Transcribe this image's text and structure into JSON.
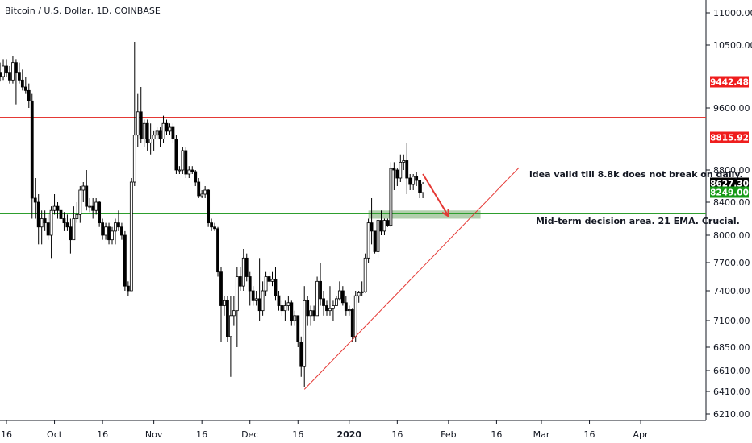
{
  "header": {
    "title": "Bitcoin / U.S. Dollar, 1D, COINBASE"
  },
  "colors": {
    "candle_up": "#ffffff",
    "candle_down": "#000000",
    "candle_outline": "#000000",
    "resistance": "#e53935",
    "support": "#2e9e2e",
    "zone": "#a5c79f",
    "trendline": "#e53935",
    "arrow": "#e53935",
    "tag_red": "#ef1d1d",
    "tag_black": "#000000",
    "tag_green": "#179a17"
  },
  "annotations": {
    "idea": "idea valid till 8.8k does not break on daily.",
    "decision": "Mid-term decision area. 21 EMA. Crucial."
  },
  "chart_data": {
    "type": "candlestick",
    "title": "Bitcoin / U.S. Dollar, 1D, COINBASE",
    "ylim": [
      6100,
      11300
    ],
    "y_ticks": [
      "11000.00",
      "10500.00",
      "9600.00",
      "8800.00",
      "8400.00",
      "8000.00",
      "7700.00",
      "7400.00",
      "7100.00",
      "6850.00",
      "6610.00",
      "6410.00",
      "6210.00"
    ],
    "x_ticks": [
      "16",
      "Oct",
      "16",
      "Nov",
      "16",
      "Dec",
      "16",
      "2020",
      "16",
      "Feb",
      "16",
      "Mar",
      "16",
      "Apr"
    ],
    "price_tags": [
      {
        "label": "9442.48",
        "style": "red"
      },
      {
        "label": "8815.92",
        "style": "red"
      },
      {
        "label": "8627.30",
        "style": "black"
      },
      {
        "label": "8249.00",
        "style": "green"
      }
    ],
    "horizontal_lines": [
      {
        "value": 9490,
        "kind": "resistance"
      },
      {
        "value": 8830,
        "kind": "resistance"
      },
      {
        "value": 8260,
        "kind": "support"
      }
    ],
    "zone": {
      "from_date": "2020-01-07",
      "to_date": "2020-02-11",
      "low": 8200,
      "high": 8300
    },
    "trendline": {
      "from": {
        "date": "2019-12-18",
        "value": 6430
      },
      "to": {
        "date": "2020-02-23",
        "value": 8830
      }
    },
    "arrow": {
      "from": {
        "date": "2020-01-24",
        "value": 8750
      },
      "to": {
        "date": "2020-02-01",
        "value": 8230
      }
    },
    "series": [
      {
        "date": "2019-09-10",
        "o": 10100,
        "h": 10400,
        "l": 10000,
        "c": 10150
      },
      {
        "date": "2019-09-11",
        "o": 10150,
        "h": 10250,
        "l": 9950,
        "c": 10050
      },
      {
        "date": "2019-09-12",
        "o": 10050,
        "h": 10300,
        "l": 9950,
        "c": 10200
      },
      {
        "date": "2019-09-13",
        "o": 10200,
        "h": 10350,
        "l": 10000,
        "c": 10100
      },
      {
        "date": "2019-09-14",
        "o": 10100,
        "h": 10250,
        "l": 9980,
        "c": 10050
      },
      {
        "date": "2019-09-15",
        "o": 10050,
        "h": 10300,
        "l": 10000,
        "c": 10200
      },
      {
        "date": "2019-09-16",
        "o": 10200,
        "h": 10300,
        "l": 10050,
        "c": 10100
      },
      {
        "date": "2019-09-17",
        "o": 10100,
        "h": 10200,
        "l": 9950,
        "c": 10000
      },
      {
        "date": "2019-09-18",
        "o": 10000,
        "h": 10350,
        "l": 9950,
        "c": 10250
      },
      {
        "date": "2019-09-19",
        "o": 10250,
        "h": 10300,
        "l": 9650,
        "c": 10100
      },
      {
        "date": "2019-09-20",
        "o": 10100,
        "h": 10250,
        "l": 9950,
        "c": 10000
      },
      {
        "date": "2019-09-21",
        "o": 10000,
        "h": 10150,
        "l": 9850,
        "c": 9900
      },
      {
        "date": "2019-09-22",
        "o": 9900,
        "h": 10050,
        "l": 9800,
        "c": 9850
      },
      {
        "date": "2019-09-23",
        "o": 9850,
        "h": 9950,
        "l": 9600,
        "c": 9700
      },
      {
        "date": "2019-09-24",
        "o": 9700,
        "h": 9800,
        "l": 8200,
        "c": 8450
      },
      {
        "date": "2019-09-25",
        "o": 8450,
        "h": 8700,
        "l": 8200,
        "c": 8400
      },
      {
        "date": "2019-09-26",
        "o": 8400,
        "h": 8500,
        "l": 7900,
        "c": 8100
      },
      {
        "date": "2019-09-27",
        "o": 8100,
        "h": 8300,
        "l": 7900,
        "c": 8200
      },
      {
        "date": "2019-09-28",
        "o": 8200,
        "h": 8300,
        "l": 8050,
        "c": 8150
      },
      {
        "date": "2019-09-29",
        "o": 8150,
        "h": 8250,
        "l": 7950,
        "c": 8000
      },
      {
        "date": "2019-09-30",
        "o": 8000,
        "h": 8350,
        "l": 7750,
        "c": 8300
      },
      {
        "date": "2019-10-01",
        "o": 8300,
        "h": 8500,
        "l": 8250,
        "c": 8350
      },
      {
        "date": "2019-10-02",
        "o": 8350,
        "h": 8400,
        "l": 8200,
        "c": 8300
      },
      {
        "date": "2019-10-03",
        "o": 8300,
        "h": 8350,
        "l": 8100,
        "c": 8200
      },
      {
        "date": "2019-10-04",
        "o": 8200,
        "h": 8280,
        "l": 8050,
        "c": 8150
      },
      {
        "date": "2019-10-05",
        "o": 8150,
        "h": 8250,
        "l": 8050,
        "c": 8100
      },
      {
        "date": "2019-10-06",
        "o": 8100,
        "h": 8200,
        "l": 7800,
        "c": 7950
      },
      {
        "date": "2019-10-07",
        "o": 7950,
        "h": 8350,
        "l": 7950,
        "c": 8200
      },
      {
        "date": "2019-10-08",
        "o": 8200,
        "h": 8400,
        "l": 8150,
        "c": 8250
      },
      {
        "date": "2019-10-09",
        "o": 8250,
        "h": 8600,
        "l": 8150,
        "c": 8550
      },
      {
        "date": "2019-10-10",
        "o": 8550,
        "h": 8650,
        "l": 8400,
        "c": 8600
      },
      {
        "date": "2019-10-11",
        "o": 8600,
        "h": 8800,
        "l": 8300,
        "c": 8350
      },
      {
        "date": "2019-10-12",
        "o": 8350,
        "h": 8450,
        "l": 8280,
        "c": 8350
      },
      {
        "date": "2019-10-13",
        "o": 8350,
        "h": 8450,
        "l": 8200,
        "c": 8300
      },
      {
        "date": "2019-10-14",
        "o": 8300,
        "h": 8450,
        "l": 8250,
        "c": 8400
      },
      {
        "date": "2019-10-15",
        "o": 8400,
        "h": 8420,
        "l": 8100,
        "c": 8150
      },
      {
        "date": "2019-10-16",
        "o": 8150,
        "h": 8200,
        "l": 7950,
        "c": 8000
      },
      {
        "date": "2019-10-17",
        "o": 8000,
        "h": 8150,
        "l": 7950,
        "c": 8100
      },
      {
        "date": "2019-10-18",
        "o": 8100,
        "h": 8150,
        "l": 7900,
        "c": 7950
      },
      {
        "date": "2019-10-19",
        "o": 7950,
        "h": 8100,
        "l": 7900,
        "c": 8050
      },
      {
        "date": "2019-10-20",
        "o": 8050,
        "h": 8200,
        "l": 7900,
        "c": 8150
      },
      {
        "date": "2019-10-21",
        "o": 8150,
        "h": 8300,
        "l": 8050,
        "c": 8100
      },
      {
        "date": "2019-10-22",
        "o": 8100,
        "h": 8150,
        "l": 7950,
        "c": 8000
      },
      {
        "date": "2019-10-23",
        "o": 8000,
        "h": 8050,
        "l": 7400,
        "c": 7450
      },
      {
        "date": "2019-10-24",
        "o": 7450,
        "h": 7500,
        "l": 7350,
        "c": 7400
      },
      {
        "date": "2019-10-25",
        "o": 7400,
        "h": 8700,
        "l": 7400,
        "c": 8650
      },
      {
        "date": "2019-10-26",
        "o": 8650,
        "h": 10550,
        "l": 8600,
        "c": 9250
      },
      {
        "date": "2019-10-27",
        "o": 9250,
        "h": 9800,
        "l": 9100,
        "c": 9550
      },
      {
        "date": "2019-10-28",
        "o": 9550,
        "h": 9900,
        "l": 9150,
        "c": 9200
      },
      {
        "date": "2019-10-29",
        "o": 9200,
        "h": 9450,
        "l": 9100,
        "c": 9400
      },
      {
        "date": "2019-10-30",
        "o": 9400,
        "h": 9450,
        "l": 9050,
        "c": 9150
      },
      {
        "date": "2019-10-31",
        "o": 9150,
        "h": 9400,
        "l": 9000,
        "c": 9200
      },
      {
        "date": "2019-11-01",
        "o": 9200,
        "h": 9300,
        "l": 9050,
        "c": 9250
      },
      {
        "date": "2019-11-02",
        "o": 9250,
        "h": 9350,
        "l": 9200,
        "c": 9300
      },
      {
        "date": "2019-11-03",
        "o": 9300,
        "h": 9350,
        "l": 9100,
        "c": 9200
      },
      {
        "date": "2019-11-04",
        "o": 9200,
        "h": 9500,
        "l": 9150,
        "c": 9400
      },
      {
        "date": "2019-11-05",
        "o": 9400,
        "h": 9450,
        "l": 9250,
        "c": 9300
      },
      {
        "date": "2019-11-06",
        "o": 9300,
        "h": 9400,
        "l": 9250,
        "c": 9350
      },
      {
        "date": "2019-11-07",
        "o": 9350,
        "h": 9400,
        "l": 9150,
        "c": 9200
      },
      {
        "date": "2019-11-08",
        "o": 9200,
        "h": 9250,
        "l": 8750,
        "c": 8800
      },
      {
        "date": "2019-11-09",
        "o": 8800,
        "h": 8850,
        "l": 8750,
        "c": 8800
      },
      {
        "date": "2019-11-10",
        "o": 8800,
        "h": 9100,
        "l": 8750,
        "c": 9050
      },
      {
        "date": "2019-11-11",
        "o": 9050,
        "h": 9100,
        "l": 8700,
        "c": 8750
      },
      {
        "date": "2019-11-12",
        "o": 8750,
        "h": 8850,
        "l": 8700,
        "c": 8800
      },
      {
        "date": "2019-11-13",
        "o": 8800,
        "h": 8850,
        "l": 8750,
        "c": 8780
      },
      {
        "date": "2019-11-14",
        "o": 8780,
        "h": 8800,
        "l": 8600,
        "c": 8650
      },
      {
        "date": "2019-11-15",
        "o": 8650,
        "h": 8700,
        "l": 8450,
        "c": 8480
      },
      {
        "date": "2019-11-16",
        "o": 8480,
        "h": 8550,
        "l": 8450,
        "c": 8500
      },
      {
        "date": "2019-11-17",
        "o": 8500,
        "h": 8600,
        "l": 8450,
        "c": 8550
      },
      {
        "date": "2019-11-18",
        "o": 8550,
        "h": 8560,
        "l": 8100,
        "c": 8150
      },
      {
        "date": "2019-11-19",
        "o": 8150,
        "h": 8200,
        "l": 8050,
        "c": 8100
      },
      {
        "date": "2019-11-20",
        "o": 8100,
        "h": 8150,
        "l": 8050,
        "c": 8080
      },
      {
        "date": "2019-11-21",
        "o": 8080,
        "h": 8100,
        "l": 7550,
        "c": 7600
      },
      {
        "date": "2019-11-22",
        "o": 7600,
        "h": 7650,
        "l": 6900,
        "c": 7250
      },
      {
        "date": "2019-11-23",
        "o": 7250,
        "h": 7350,
        "l": 7150,
        "c": 7300
      },
      {
        "date": "2019-11-24",
        "o": 7300,
        "h": 7350,
        "l": 6900,
        "c": 6950
      },
      {
        "date": "2019-11-25",
        "o": 6950,
        "h": 7350,
        "l": 6550,
        "c": 7150
      },
      {
        "date": "2019-11-26",
        "o": 7150,
        "h": 7350,
        "l": 7050,
        "c": 7200
      },
      {
        "date": "2019-11-27",
        "o": 7200,
        "h": 7650,
        "l": 6850,
        "c": 7550
      },
      {
        "date": "2019-11-28",
        "o": 7550,
        "h": 7650,
        "l": 7400,
        "c": 7450
      },
      {
        "date": "2019-11-29",
        "o": 7450,
        "h": 7850,
        "l": 7400,
        "c": 7750
      },
      {
        "date": "2019-11-30",
        "o": 7750,
        "h": 7800,
        "l": 7500,
        "c": 7550
      },
      {
        "date": "2019-12-01",
        "o": 7550,
        "h": 7600,
        "l": 7250,
        "c": 7400
      },
      {
        "date": "2019-12-02",
        "o": 7400,
        "h": 7450,
        "l": 7250,
        "c": 7300
      },
      {
        "date": "2019-12-03",
        "o": 7300,
        "h": 7400,
        "l": 7250,
        "c": 7320
      },
      {
        "date": "2019-12-04",
        "o": 7320,
        "h": 7750,
        "l": 7100,
        "c": 7200
      },
      {
        "date": "2019-12-05",
        "o": 7200,
        "h": 7500,
        "l": 7150,
        "c": 7400
      },
      {
        "date": "2019-12-06",
        "o": 7400,
        "h": 7600,
        "l": 7350,
        "c": 7550
      },
      {
        "date": "2019-12-07",
        "o": 7550,
        "h": 7600,
        "l": 7450,
        "c": 7500
      },
      {
        "date": "2019-12-08",
        "o": 7500,
        "h": 7600,
        "l": 7450,
        "c": 7520
      },
      {
        "date": "2019-12-09",
        "o": 7520,
        "h": 7650,
        "l": 7300,
        "c": 7350
      },
      {
        "date": "2019-12-10",
        "o": 7350,
        "h": 7400,
        "l": 7200,
        "c": 7250
      },
      {
        "date": "2019-12-11",
        "o": 7250,
        "h": 7300,
        "l": 7150,
        "c": 7200
      },
      {
        "date": "2019-12-12",
        "o": 7200,
        "h": 7300,
        "l": 7100,
        "c": 7250
      },
      {
        "date": "2019-12-13",
        "o": 7250,
        "h": 7350,
        "l": 7200,
        "c": 7280
      },
      {
        "date": "2019-12-14",
        "o": 7280,
        "h": 7300,
        "l": 7050,
        "c": 7100
      },
      {
        "date": "2019-12-15",
        "o": 7100,
        "h": 7200,
        "l": 7050,
        "c": 7150
      },
      {
        "date": "2019-12-16",
        "o": 7150,
        "h": 7150,
        "l": 6850,
        "c": 6900
      },
      {
        "date": "2019-12-17",
        "o": 6900,
        "h": 6950,
        "l": 6550,
        "c": 6650
      },
      {
        "date": "2019-12-18",
        "o": 6650,
        "h": 7450,
        "l": 6450,
        "c": 7300
      },
      {
        "date": "2019-12-19",
        "o": 7300,
        "h": 7350,
        "l": 7050,
        "c": 7150
      },
      {
        "date": "2019-12-20",
        "o": 7150,
        "h": 7250,
        "l": 7050,
        "c": 7200
      },
      {
        "date": "2019-12-21",
        "o": 7200,
        "h": 7250,
        "l": 7100,
        "c": 7150
      },
      {
        "date": "2019-12-22",
        "o": 7150,
        "h": 7550,
        "l": 7150,
        "c": 7500
      },
      {
        "date": "2019-12-23",
        "o": 7500,
        "h": 7700,
        "l": 7250,
        "c": 7320
      },
      {
        "date": "2019-12-24",
        "o": 7320,
        "h": 7400,
        "l": 7150,
        "c": 7250
      },
      {
        "date": "2019-12-25",
        "o": 7250,
        "h": 7300,
        "l": 7150,
        "c": 7200
      },
      {
        "date": "2019-12-26",
        "o": 7200,
        "h": 7450,
        "l": 7150,
        "c": 7220
      },
      {
        "date": "2019-12-27",
        "o": 7220,
        "h": 7300,
        "l": 7100,
        "c": 7250
      },
      {
        "date": "2019-12-28",
        "o": 7250,
        "h": 7350,
        "l": 7250,
        "c": 7320
      },
      {
        "date": "2019-12-29",
        "o": 7320,
        "h": 7500,
        "l": 7300,
        "c": 7400
      },
      {
        "date": "2019-12-30",
        "o": 7400,
        "h": 7450,
        "l": 7250,
        "c": 7280
      },
      {
        "date": "2019-12-31",
        "o": 7280,
        "h": 7350,
        "l": 7150,
        "c": 7200
      },
      {
        "date": "2020-01-01",
        "o": 7200,
        "h": 7250,
        "l": 7150,
        "c": 7210
      },
      {
        "date": "2020-01-02",
        "o": 7210,
        "h": 7220,
        "l": 6900,
        "c": 6950
      },
      {
        "date": "2020-01-03",
        "o": 6950,
        "h": 7400,
        "l": 6900,
        "c": 7350
      },
      {
        "date": "2020-01-04",
        "o": 7350,
        "h": 7400,
        "l": 7280,
        "c": 7380
      },
      {
        "date": "2020-01-05",
        "o": 7380,
        "h": 7500,
        "l": 7350,
        "c": 7390
      },
      {
        "date": "2020-01-06",
        "o": 7390,
        "h": 7800,
        "l": 7380,
        "c": 7750
      },
      {
        "date": "2020-01-07",
        "o": 7750,
        "h": 8200,
        "l": 7700,
        "c": 8150
      },
      {
        "date": "2020-01-08",
        "o": 8150,
        "h": 8450,
        "l": 7900,
        "c": 8050
      },
      {
        "date": "2020-01-09",
        "o": 8050,
        "h": 8050,
        "l": 7800,
        "c": 7820
      },
      {
        "date": "2020-01-10",
        "o": 7820,
        "h": 8200,
        "l": 7750,
        "c": 8180
      },
      {
        "date": "2020-01-11",
        "o": 8180,
        "h": 8300,
        "l": 8000,
        "c": 8050
      },
      {
        "date": "2020-01-12",
        "o": 8050,
        "h": 8200,
        "l": 8000,
        "c": 8180
      },
      {
        "date": "2020-01-13",
        "o": 8180,
        "h": 8200,
        "l": 8100,
        "c": 8120
      },
      {
        "date": "2020-01-14",
        "o": 8120,
        "h": 8900,
        "l": 8100,
        "c": 8820
      },
      {
        "date": "2020-01-15",
        "o": 8820,
        "h": 8900,
        "l": 8550,
        "c": 8800
      },
      {
        "date": "2020-01-16",
        "o": 8800,
        "h": 8820,
        "l": 8600,
        "c": 8700
      },
      {
        "date": "2020-01-17",
        "o": 8700,
        "h": 9000,
        "l": 8650,
        "c": 8900
      },
      {
        "date": "2020-01-18",
        "o": 8900,
        "h": 9000,
        "l": 8800,
        "c": 8920
      },
      {
        "date": "2020-01-19",
        "o": 8920,
        "h": 9150,
        "l": 8500,
        "c": 8700
      },
      {
        "date": "2020-01-20",
        "o": 8700,
        "h": 8750,
        "l": 8550,
        "c": 8620
      },
      {
        "date": "2020-01-21",
        "o": 8620,
        "h": 8750,
        "l": 8550,
        "c": 8720
      },
      {
        "date": "2020-01-22",
        "o": 8720,
        "h": 8780,
        "l": 8600,
        "c": 8670
      },
      {
        "date": "2020-01-23",
        "o": 8670,
        "h": 8680,
        "l": 8450,
        "c": 8520
      },
      {
        "date": "2020-01-24",
        "o": 8520,
        "h": 8650,
        "l": 8450,
        "c": 8627
      }
    ]
  }
}
